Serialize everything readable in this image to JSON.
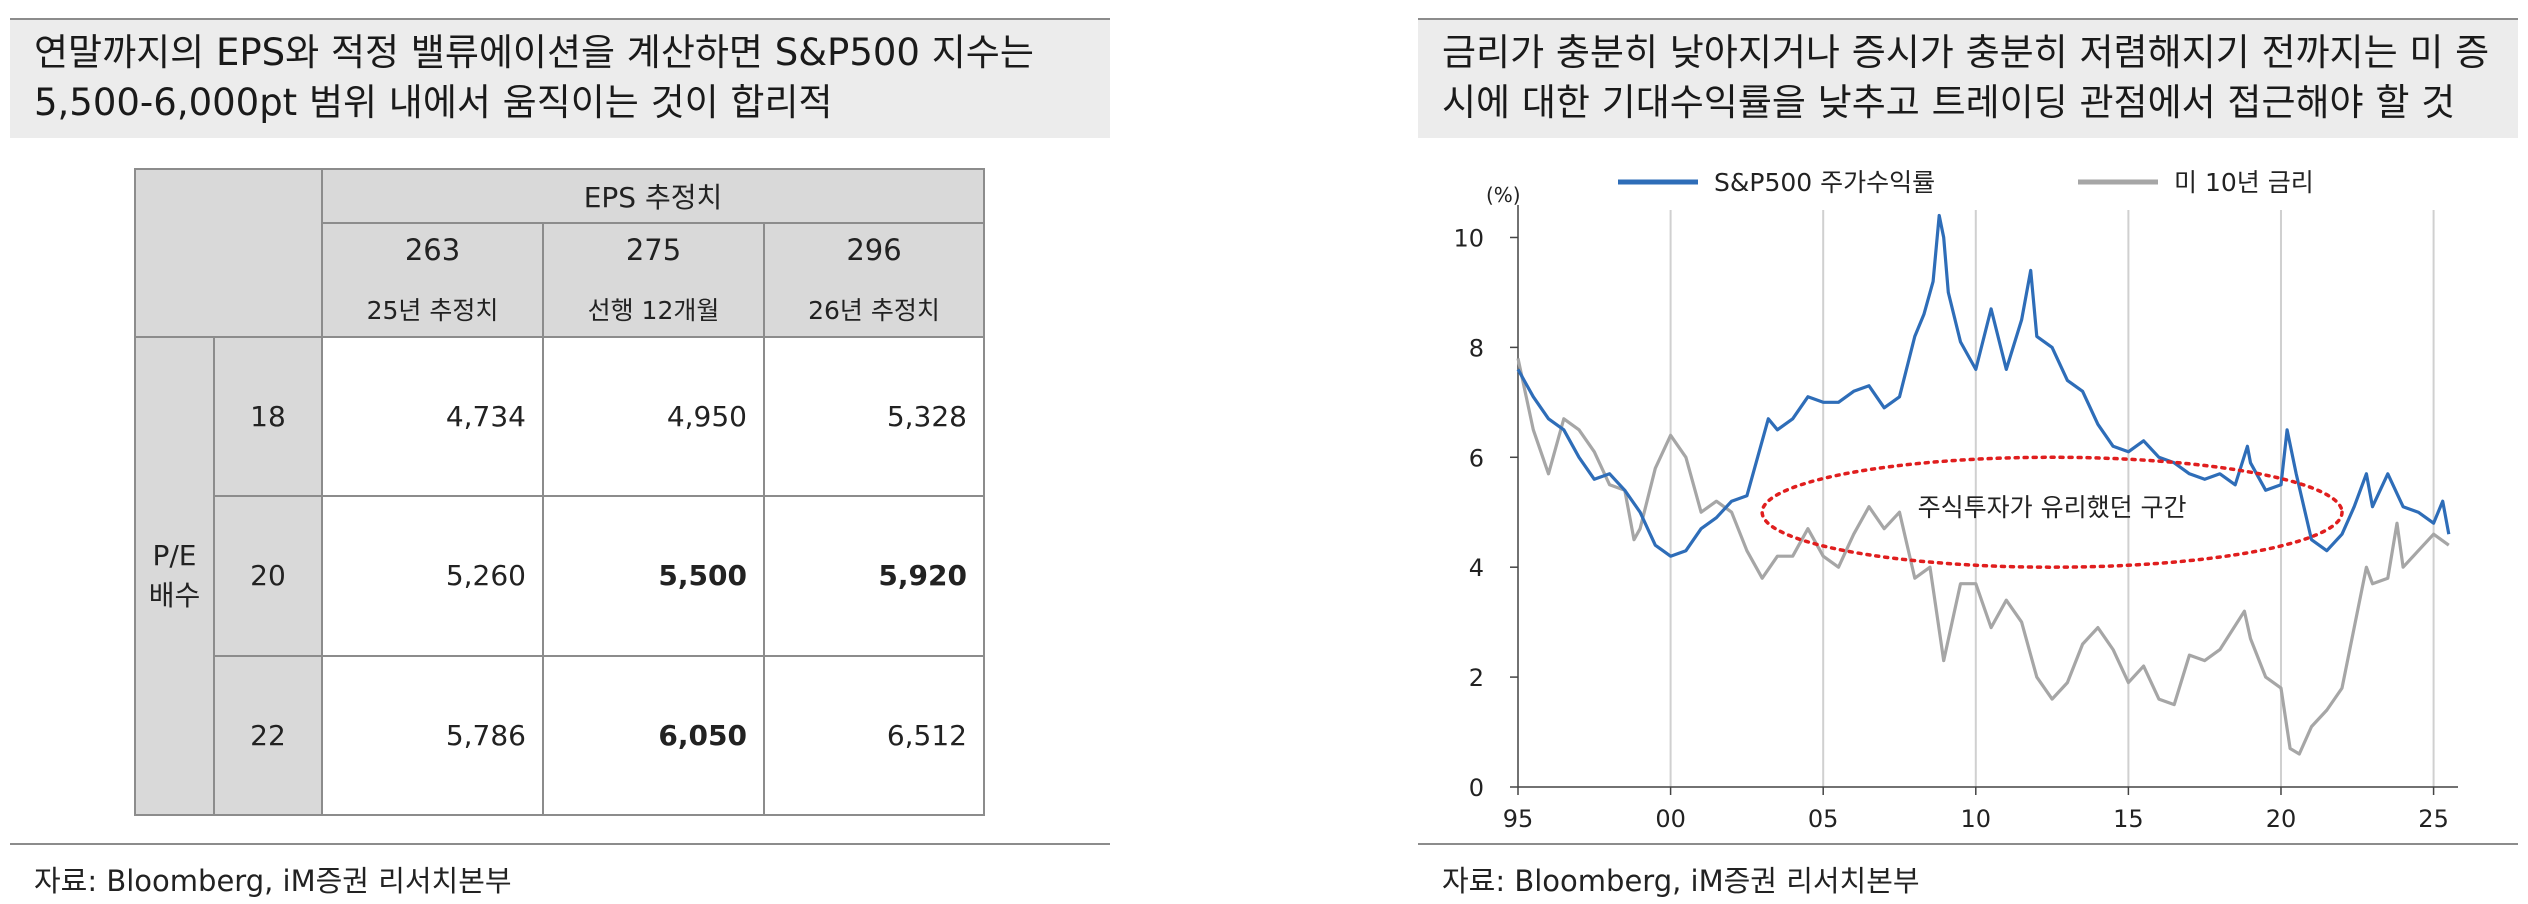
{
  "left": {
    "title": "연말까지의 EPS와 적정 밸류에이션을 계산하면 S&P500 지수는\n5,500-6,000pt 범위 내에서 움직이는 것이 합리적",
    "source": "자료: Bloomberg, iM증권 리서치본부",
    "table": {
      "eps_header": "EPS 추정치",
      "columns": [
        {
          "value": "263",
          "label": "25년 추정치"
        },
        {
          "value": "275",
          "label": "선행 12개월"
        },
        {
          "value": "296",
          "label": "26년 추정치"
        }
      ],
      "pe_label": "P/E\n배수",
      "rows": [
        {
          "pe": "18",
          "cells": [
            "4,734",
            "4,950",
            "5,328"
          ],
          "bold": [
            false,
            false,
            false
          ]
        },
        {
          "pe": "20",
          "cells": [
            "5,260",
            "5,500",
            "5,920"
          ],
          "bold": [
            false,
            true,
            true
          ]
        },
        {
          "pe": "22",
          "cells": [
            "5,786",
            "6,050",
            "6,512"
          ],
          "bold": [
            false,
            true,
            false
          ]
        }
      ]
    }
  },
  "right": {
    "title": "금리가 충분히 낮아지거나 증시가 충분히 저렴해지기 전까지는 미 증\n시에 대한 기대수익률을 낮추고 트레이딩 관점에서 접근해야 할 것",
    "source": "자료: Bloomberg, iM증권 리서치본부"
  },
  "chart_data": {
    "type": "line",
    "ylabel": "(%)",
    "ylim": [
      0,
      10.5
    ],
    "yticks": [
      0,
      2,
      4,
      6,
      8,
      10
    ],
    "xlim": [
      1995,
      2025.8
    ],
    "xticks": [
      {
        "v": 1995,
        "label": "95"
      },
      {
        "v": 2000,
        "label": "00"
      },
      {
        "v": 2005,
        "label": "05"
      },
      {
        "v": 2010,
        "label": "10"
      },
      {
        "v": 2015,
        "label": "15"
      },
      {
        "v": 2020,
        "label": "20"
      },
      {
        "v": 2025,
        "label": "25"
      }
    ],
    "legend_position": "top",
    "annotation": "주식투자가 유리했던 구간",
    "series": [
      {
        "name": "S&P500 주가수익률",
        "color": "#2e6db8",
        "x": [
          1995.0,
          1995.5,
          1996.0,
          1996.5,
          1997.0,
          1997.5,
          1998.0,
          1998.5,
          1999.0,
          1999.5,
          2000.0,
          2000.5,
          2001.0,
          2001.5,
          2002.0,
          2002.5,
          2003.0,
          2003.2,
          2003.5,
          2004.0,
          2004.5,
          2005.0,
          2005.5,
          2006.0,
          2006.5,
          2007.0,
          2007.5,
          2008.0,
          2008.3,
          2008.6,
          2008.8,
          2008.95,
          2009.1,
          2009.5,
          2010.0,
          2010.5,
          2011.0,
          2011.5,
          2011.8,
          2012.0,
          2012.5,
          2013.0,
          2013.5,
          2014.0,
          2014.5,
          2015.0,
          2015.5,
          2016.0,
          2016.5,
          2017.0,
          2017.5,
          2018.0,
          2018.5,
          2018.9,
          2019.0,
          2019.5,
          2020.0,
          2020.2,
          2020.5,
          2021.0,
          2021.5,
          2022.0,
          2022.4,
          2022.8,
          2023.0,
          2023.5,
          2024.0,
          2024.5,
          2025.0,
          2025.3,
          2025.5
        ],
        "y": [
          7.6,
          7.1,
          6.7,
          6.5,
          6.0,
          5.6,
          5.7,
          5.4,
          5.0,
          4.4,
          4.2,
          4.3,
          4.7,
          4.9,
          5.2,
          5.3,
          6.3,
          6.7,
          6.5,
          6.7,
          7.1,
          7.0,
          7.0,
          7.2,
          7.3,
          6.9,
          7.1,
          8.2,
          8.6,
          9.2,
          10.4,
          10.0,
          9.0,
          8.1,
          7.6,
          8.7,
          7.6,
          8.5,
          9.4,
          8.2,
          8.0,
          7.4,
          7.2,
          6.6,
          6.2,
          6.1,
          6.3,
          6.0,
          5.9,
          5.7,
          5.6,
          5.7,
          5.5,
          6.2,
          5.9,
          5.4,
          5.5,
          6.5,
          5.7,
          4.5,
          4.3,
          4.6,
          5.1,
          5.7,
          5.1,
          5.7,
          5.1,
          5.0,
          4.8,
          5.2,
          4.6
        ]
      },
      {
        "name": "미 10년 금리",
        "color": "#a6a6a6",
        "x": [
          1995.0,
          1995.5,
          1996.0,
          1996.5,
          1997.0,
          1997.5,
          1998.0,
          1998.5,
          1998.8,
          1999.0,
          1999.5,
          2000.0,
          2000.5,
          2001.0,
          2001.5,
          2002.0,
          2002.5,
          2003.0,
          2003.5,
          2004.0,
          2004.5,
          2005.0,
          2005.5,
          2006.0,
          2006.5,
          2007.0,
          2007.5,
          2008.0,
          2008.5,
          2008.95,
          2009.5,
          2010.0,
          2010.5,
          2011.0,
          2011.5,
          2012.0,
          2012.5,
          2013.0,
          2013.5,
          2014.0,
          2014.5,
          2015.0,
          2015.5,
          2016.0,
          2016.5,
          2017.0,
          2017.5,
          2018.0,
          2018.8,
          2019.0,
          2019.5,
          2020.0,
          2020.3,
          2020.6,
          2021.0,
          2021.5,
          2022.0,
          2022.4,
          2022.8,
          2023.0,
          2023.5,
          2023.8,
          2024.0,
          2024.5,
          2025.0,
          2025.5
        ],
        "y": [
          7.8,
          6.5,
          5.7,
          6.7,
          6.5,
          6.1,
          5.5,
          5.4,
          4.5,
          4.7,
          5.8,
          6.4,
          6.0,
          5.0,
          5.2,
          5.0,
          4.3,
          3.8,
          4.2,
          4.2,
          4.7,
          4.2,
          4.0,
          4.6,
          5.1,
          4.7,
          5.0,
          3.8,
          4.0,
          2.3,
          3.7,
          3.7,
          2.9,
          3.4,
          3.0,
          2.0,
          1.6,
          1.9,
          2.6,
          2.9,
          2.5,
          1.9,
          2.2,
          1.6,
          1.5,
          2.4,
          2.3,
          2.5,
          3.2,
          2.7,
          2.0,
          1.8,
          0.7,
          0.6,
          1.1,
          1.4,
          1.8,
          2.9,
          4.0,
          3.7,
          3.8,
          4.8,
          4.0,
          4.3,
          4.6,
          4.4
        ]
      }
    ]
  }
}
